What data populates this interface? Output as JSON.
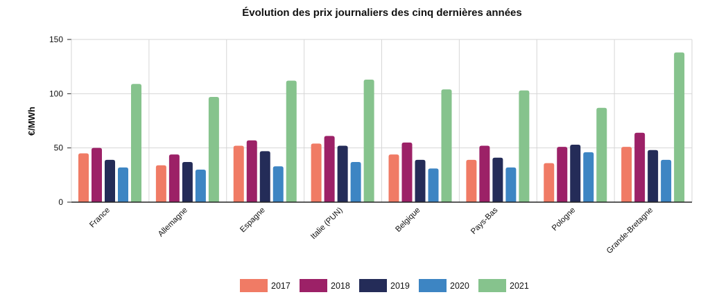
{
  "chart_data": {
    "type": "bar",
    "title": "Évolution des prix journaliers des cinq dernières années",
    "xlabel": "",
    "ylabel": "€/MWh",
    "ylim": [
      0,
      150
    ],
    "yticks": [
      0,
      50,
      100,
      150
    ],
    "grid": true,
    "legend_position": "bottom",
    "categories": [
      "France",
      "Allemagne",
      "Espagne",
      "Italie (PUN)",
      "Belgique",
      "Pays-Bas",
      "Pologne",
      "Grande-Bretagne"
    ],
    "series": [
      {
        "name": "2017",
        "color": "#f07b65",
        "values": [
          45,
          34,
          52,
          54,
          44,
          39,
          36,
          51
        ]
      },
      {
        "name": "2018",
        "color": "#9c2167",
        "values": [
          50,
          44,
          57,
          61,
          55,
          52,
          51,
          64
        ]
      },
      {
        "name": "2019",
        "color": "#242c58",
        "values": [
          39,
          37,
          47,
          52,
          39,
          41,
          53,
          48
        ]
      },
      {
        "name": "2020",
        "color": "#3d85c3",
        "values": [
          32,
          30,
          33,
          37,
          31,
          32,
          46,
          39
        ]
      },
      {
        "name": "2021",
        "color": "#86c38d",
        "values": [
          109,
          97,
          112,
          113,
          104,
          103,
          87,
          138
        ]
      }
    ]
  }
}
